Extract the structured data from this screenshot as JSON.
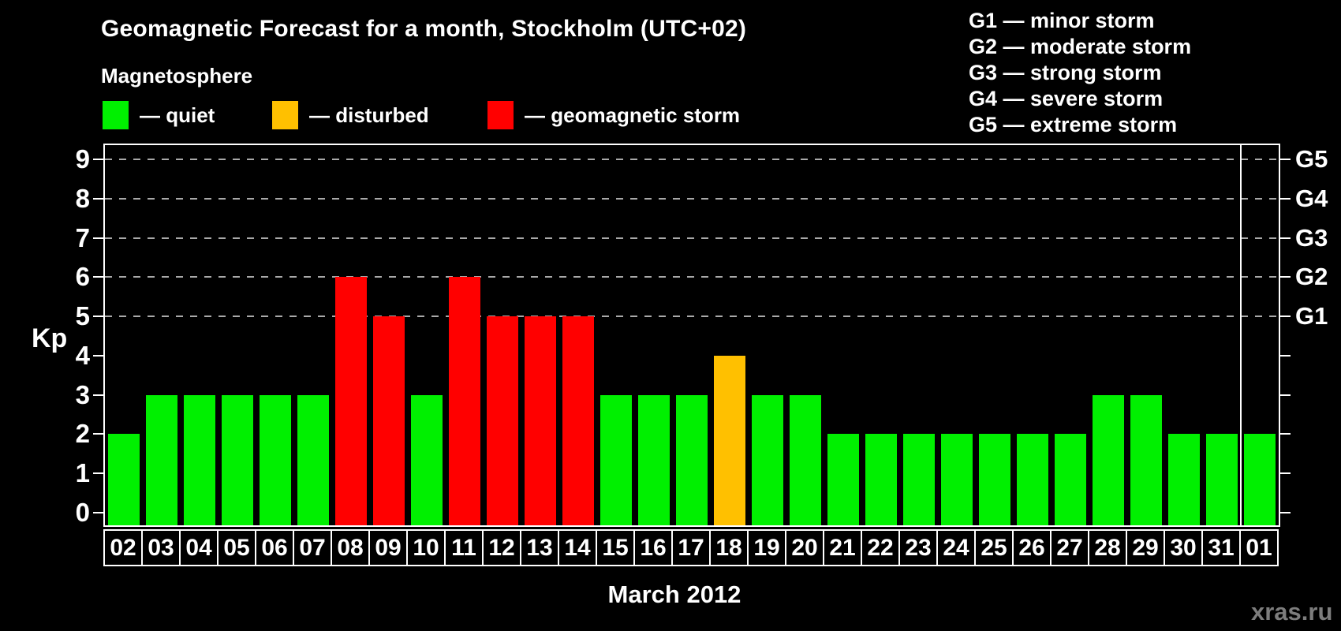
{
  "header": {
    "title": "Geomagnetic Forecast for a month, Stockholm (UTC+02)",
    "subtitle": "Magnetosphere"
  },
  "magnetosphere_legend": [
    {
      "status": "quiet",
      "label": "— quiet",
      "color": "#00f000"
    },
    {
      "status": "disturbed",
      "label": "— disturbed",
      "color": "#ffc000"
    },
    {
      "status": "storm",
      "label": "— geomagnetic storm",
      "color": "#ff0000"
    }
  ],
  "g_scale_legend": [
    "G1 — minor storm",
    "G2 — moderate storm",
    "G3 — strong storm",
    "G4 — severe storm",
    "G5 — extreme storm"
  ],
  "watermark": "xras.ru",
  "chart_data": {
    "type": "bar",
    "title": "Geomagnetic Forecast for a month, Stockholm (UTC+02)",
    "ylabel": "Kp",
    "xlabel": "March 2012",
    "ylim": [
      0,
      9
    ],
    "y_ticks": [
      0,
      1,
      2,
      3,
      4,
      5,
      6,
      7,
      8,
      9
    ],
    "gridlines_at": [
      5,
      6,
      7,
      8,
      9
    ],
    "grid_style": "dashed horizontal gray lines at storm thresholds only",
    "right_axis": [
      {
        "value": 5,
        "label": "G1"
      },
      {
        "value": 6,
        "label": "G2"
      },
      {
        "value": 7,
        "label": "G3"
      },
      {
        "value": 8,
        "label": "G4"
      },
      {
        "value": 9,
        "label": "G5"
      }
    ],
    "categories": [
      "02",
      "03",
      "04",
      "05",
      "06",
      "07",
      "08",
      "09",
      "10",
      "11",
      "12",
      "13",
      "14",
      "15",
      "16",
      "17",
      "18",
      "19",
      "20",
      "21",
      "22",
      "23",
      "24",
      "25",
      "26",
      "27",
      "28",
      "29",
      "30",
      "31",
      "01"
    ],
    "values": [
      2,
      3,
      3,
      3,
      3,
      3,
      6,
      5,
      3,
      6,
      5,
      5,
      5,
      3,
      3,
      3,
      4,
      3,
      3,
      2,
      2,
      2,
      2,
      2,
      2,
      2,
      3,
      3,
      2,
      2,
      2
    ],
    "statuses": [
      "quiet",
      "quiet",
      "quiet",
      "quiet",
      "quiet",
      "quiet",
      "storm",
      "storm",
      "quiet",
      "storm",
      "storm",
      "storm",
      "storm",
      "quiet",
      "quiet",
      "quiet",
      "disturbed",
      "quiet",
      "quiet",
      "quiet",
      "quiet",
      "quiet",
      "quiet",
      "quiet",
      "quiet",
      "quiet",
      "quiet",
      "quiet",
      "quiet",
      "quiet",
      "quiet"
    ],
    "status_colors": {
      "quiet": "#00f000",
      "disturbed": "#ffc000",
      "storm": "#ff0000"
    },
    "month_separator_before_index": 30,
    "legend_position": "top-left"
  }
}
